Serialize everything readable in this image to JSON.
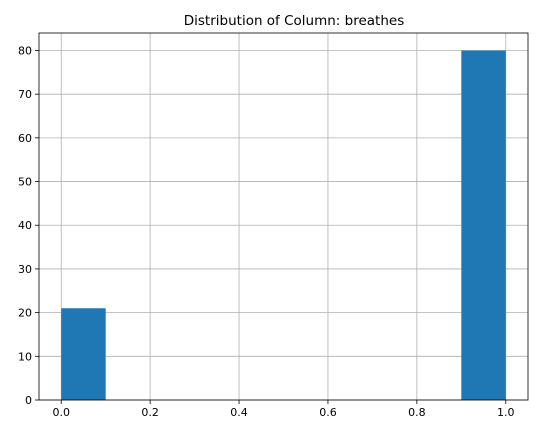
{
  "chart_data": {
    "type": "bar",
    "title": "Distribution of Column: breathes",
    "xlabel": "",
    "ylabel": "",
    "xlim": [
      -0.05,
      1.05
    ],
    "ylim": [
      0,
      84
    ],
    "bins": [
      {
        "x0": 0.0,
        "x1": 0.1,
        "value": 21
      },
      {
        "x0": 0.1,
        "x1": 0.2,
        "value": 0
      },
      {
        "x0": 0.2,
        "x1": 0.3,
        "value": 0
      },
      {
        "x0": 0.3,
        "x1": 0.4,
        "value": 0
      },
      {
        "x0": 0.4,
        "x1": 0.5,
        "value": 0
      },
      {
        "x0": 0.5,
        "x1": 0.6,
        "value": 0
      },
      {
        "x0": 0.6,
        "x1": 0.7,
        "value": 0
      },
      {
        "x0": 0.7,
        "x1": 0.8,
        "value": 0
      },
      {
        "x0": 0.8,
        "x1": 0.9,
        "value": 0
      },
      {
        "x0": 0.9,
        "x1": 1.0,
        "value": 80
      }
    ],
    "x_ticks": [
      {
        "value": 0.0,
        "label": "0.0"
      },
      {
        "value": 0.2,
        "label": "0.2"
      },
      {
        "value": 0.4,
        "label": "0.4"
      },
      {
        "value": 0.6,
        "label": "0.6"
      },
      {
        "value": 0.8,
        "label": "0.8"
      },
      {
        "value": 1.0,
        "label": "1.0"
      }
    ],
    "y_ticks": [
      {
        "value": 0,
        "label": "0"
      },
      {
        "value": 10,
        "label": "10"
      },
      {
        "value": 20,
        "label": "20"
      },
      {
        "value": 30,
        "label": "30"
      },
      {
        "value": 40,
        "label": "40"
      },
      {
        "value": 50,
        "label": "50"
      },
      {
        "value": 60,
        "label": "60"
      },
      {
        "value": 70,
        "label": "70"
      },
      {
        "value": 80,
        "label": "80"
      }
    ],
    "grid": true,
    "bar_color": "#1f77b4",
    "grid_color": "#b0b0b0"
  }
}
